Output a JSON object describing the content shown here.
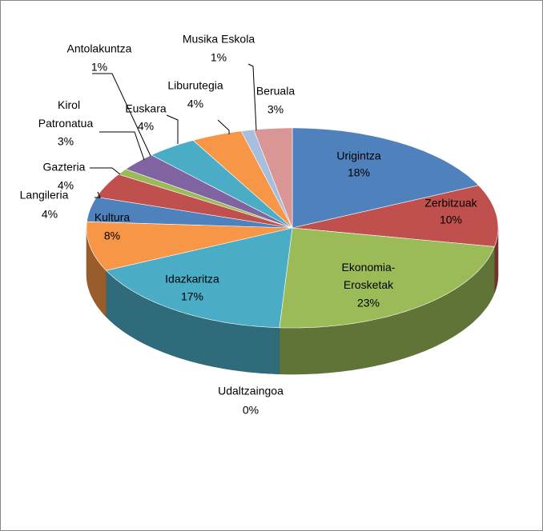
{
  "chart_data": {
    "type": "pie3d",
    "categories": [
      "Urigintza",
      "Zerbitzuak",
      "Ekonomia-Erosketak",
      "Udaltzaingoa",
      "Idazkaritza",
      "Kultura",
      "Langileria",
      "Gazteria",
      "Antolakuntza",
      "Kirol Patronatua",
      "Euskara",
      "Liburutegia",
      "Musika Eskola",
      "Beruala"
    ],
    "values": [
      18,
      10,
      23,
      0,
      17,
      8,
      4,
      4,
      1,
      3,
      4,
      4,
      1,
      3
    ],
    "value_labels": [
      "18%",
      "10%",
      "23%",
      "0%",
      "17%",
      "8%",
      "4%",
      "4%",
      "1%",
      "3%",
      "4%",
      "4%",
      "1%",
      "3%"
    ],
    "colors": [
      "#4f81bd",
      "#c0504d",
      "#9bbb59",
      "#8064a2",
      "#4bacc6",
      "#f79646",
      "#4f81bd",
      "#c0504d",
      "#9bbb59",
      "#8064a2",
      "#4bacc6",
      "#f79646",
      "#a7bfde",
      "#d99694"
    ]
  }
}
